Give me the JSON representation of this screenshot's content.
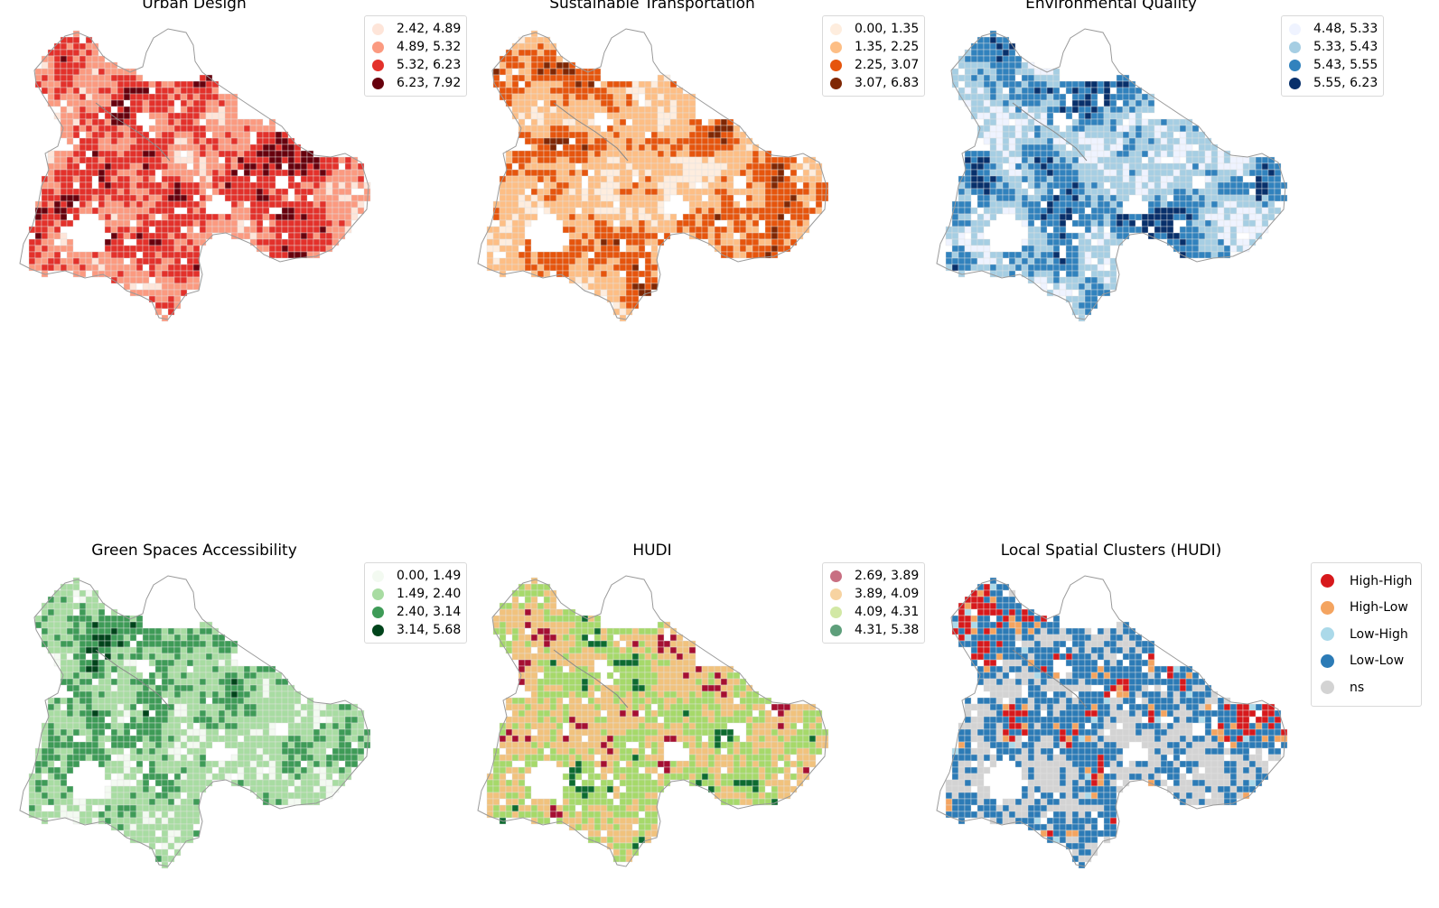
{
  "figure": {
    "panels": [
      {
        "id": "urban-design",
        "title": "Urban Design",
        "legend": [
          {
            "label": "2.42, 4.89",
            "color": "#fee5d9"
          },
          {
            "label": "4.89, 5.32",
            "color": "#fb9a80"
          },
          {
            "label": "5.32, 6.23",
            "color": "#e3312b"
          },
          {
            "label": "6.23, 7.92",
            "color": "#67000d"
          }
        ],
        "class_weights": [
          0.24,
          0.26,
          0.27,
          0.23
        ],
        "empty_cell_color": "#ffffff"
      },
      {
        "id": "sustainable-transportation",
        "title": "Sustainable Transportation",
        "legend": [
          {
            "label": "0.00, 1.35",
            "color": "#feedde"
          },
          {
            "label": "1.35, 2.25",
            "color": "#fdbe85"
          },
          {
            "label": "2.25, 3.07",
            "color": "#e6550d"
          },
          {
            "label": "3.07, 6.83",
            "color": "#7f2704"
          }
        ],
        "class_weights": [
          0.28,
          0.27,
          0.27,
          0.18
        ],
        "empty_cell_color": "#ffffff"
      },
      {
        "id": "environmental-quality",
        "title": "Environmental Quality",
        "legend": [
          {
            "label": "4.48, 5.33",
            "color": "#eff3ff"
          },
          {
            "label": "5.33, 5.43",
            "color": "#a6cee3"
          },
          {
            "label": "5.43, 5.55",
            "color": "#3182bd"
          },
          {
            "label": "5.55, 6.23",
            "color": "#08306b"
          }
        ],
        "class_weights": [
          0.3,
          0.22,
          0.26,
          0.22
        ],
        "empty_cell_color": "#ffffff"
      },
      {
        "id": "green-spaces-accessibility",
        "title": "Green Spaces Accessibility",
        "legend": [
          {
            "label": "0.00, 1.49",
            "color": "#f3faf1"
          },
          {
            "label": "1.49, 2.40",
            "color": "#a8dca2"
          },
          {
            "label": "2.40, 3.14",
            "color": "#3e9b57"
          },
          {
            "label": "3.14, 5.68",
            "color": "#00441b"
          }
        ],
        "class_weights": [
          0.27,
          0.26,
          0.24,
          0.23
        ],
        "empty_cell_color": "#ffffff"
      },
      {
        "id": "hudi",
        "title": "HUDI",
        "legend": [
          {
            "label": "2.69, 3.89",
            "color": "#c86f82"
          },
          {
            "label": "3.89, 4.09",
            "color": "#f7d3a1"
          },
          {
            "label": "4.09, 4.31",
            "color": "#d2e8a5"
          },
          {
            "label": "4.31, 5.38",
            "color": "#5e9f7b"
          }
        ],
        "map_colors": [
          "#a50f32",
          "#f1c27d",
          "#a6d96a",
          "#0d6b30"
        ],
        "class_weights": [
          0.25,
          0.25,
          0.25,
          0.25
        ],
        "empty_cell_color": "#ffffff"
      },
      {
        "id": "local-spatial-clusters",
        "title": "Local Spatial Clusters (HUDI)",
        "legend": [
          {
            "label": "High-High",
            "color": "#d7191c"
          },
          {
            "label": "High-Low",
            "color": "#f4a460"
          },
          {
            "label": "Low-High",
            "color": "#abd9e9"
          },
          {
            "label": "Low-Low",
            "color": "#2c7bb6"
          },
          {
            "label": "ns",
            "color": "#d3d3d3"
          }
        ],
        "class_weights": [
          0.3,
          0.04,
          0.02,
          0.24,
          0.4
        ],
        "empty_cell_color": "#ffffff"
      }
    ],
    "boundary_color": "#9a9a9a"
  }
}
